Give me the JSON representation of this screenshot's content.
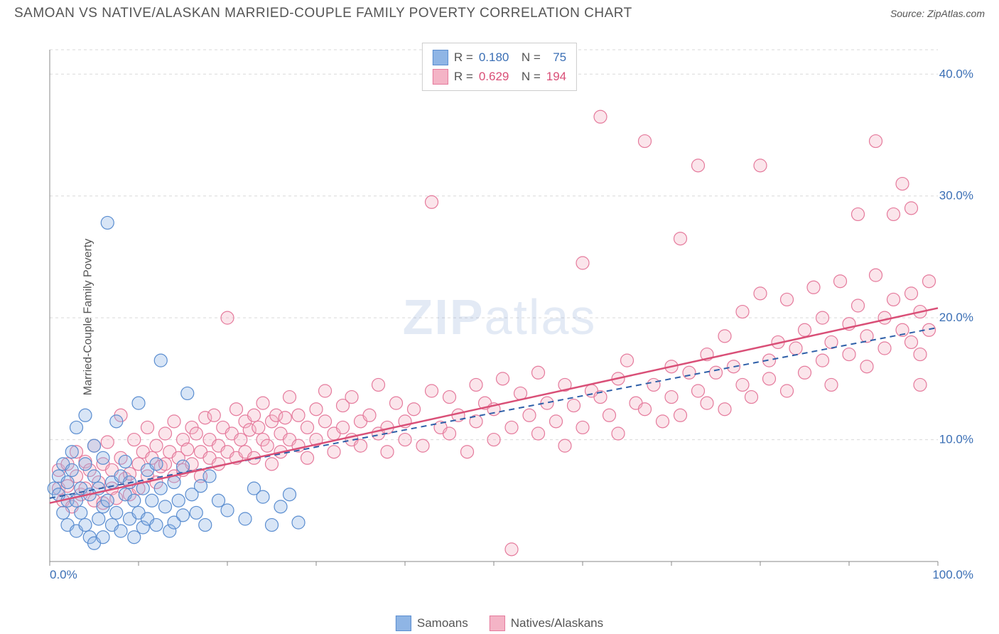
{
  "title": "SAMOAN VS NATIVE/ALASKAN MARRIED-COUPLE FAMILY POVERTY CORRELATION CHART",
  "source_label": "Source: ZipAtlas.com",
  "y_axis_label": "Married-Couple Family Poverty",
  "watermark": {
    "bold": "ZIP",
    "light": "atlas"
  },
  "chart": {
    "type": "scatter",
    "background_color": "#ffffff",
    "grid_color": "#d9d9d9",
    "grid_dash": "4,4",
    "axis_color": "#888888",
    "tick_label_color": "#3b6fb5",
    "tick_label_fontsize": 17,
    "xlim": [
      0,
      100
    ],
    "ylim": [
      0,
      42
    ],
    "x_ticks": [
      0,
      10,
      20,
      30,
      40,
      50,
      60,
      70,
      80,
      90,
      100
    ],
    "x_tick_labels": {
      "0": "0.0%",
      "100": "100.0%"
    },
    "y_ticks": [
      10,
      20,
      30,
      40
    ],
    "y_tick_labels": [
      "10.0%",
      "20.0%",
      "30.0%",
      "40.0%"
    ],
    "marker_radius": 9,
    "marker_fill_opacity": 0.35,
    "marker_stroke_width": 1.2,
    "series": [
      {
        "name": "Samoans",
        "color_fill": "#8fb5e5",
        "color_stroke": "#5a8dd0",
        "line_color": "#2e5fa8",
        "line_style": "dashed",
        "line_width": 2,
        "R": "0.180",
        "N": "75",
        "trend": {
          "x1": 0,
          "y1": 5.2,
          "x2": 100,
          "y2": 19.2
        },
        "points": [
          [
            0.5,
            6
          ],
          [
            1,
            5.5
          ],
          [
            1,
            7
          ],
          [
            1.5,
            4
          ],
          [
            1.5,
            8
          ],
          [
            2,
            5
          ],
          [
            2,
            6.5
          ],
          [
            2,
            3
          ],
          [
            2.5,
            7.5
          ],
          [
            2.5,
            9
          ],
          [
            3,
            5
          ],
          [
            3,
            2.5
          ],
          [
            3,
            11
          ],
          [
            3.5,
            6
          ],
          [
            3.5,
            4
          ],
          [
            4,
            8
          ],
          [
            4,
            3
          ],
          [
            4,
            12
          ],
          [
            4.5,
            5.5
          ],
          [
            4.5,
            2
          ],
          [
            5,
            7
          ],
          [
            5,
            1.5
          ],
          [
            5,
            9.5
          ],
          [
            5.5,
            6
          ],
          [
            5.5,
            3.5
          ],
          [
            6,
            4.5
          ],
          [
            6,
            8.5
          ],
          [
            6,
            2
          ],
          [
            6.5,
            27.8
          ],
          [
            6.5,
            5
          ],
          [
            7,
            6.5
          ],
          [
            7,
            3
          ],
          [
            7.5,
            11.5
          ],
          [
            7.5,
            4
          ],
          [
            8,
            7
          ],
          [
            8,
            2.5
          ],
          [
            8.5,
            5.5
          ],
          [
            8.5,
            8.2
          ],
          [
            9,
            3.5
          ],
          [
            9,
            6.5
          ],
          [
            9.5,
            2
          ],
          [
            9.5,
            5
          ],
          [
            10,
            13
          ],
          [
            10,
            4
          ],
          [
            10.5,
            6
          ],
          [
            10.5,
            2.8
          ],
          [
            11,
            3.5
          ],
          [
            11,
            7.5
          ],
          [
            11.5,
            5
          ],
          [
            12,
            8
          ],
          [
            12,
            3
          ],
          [
            12.5,
            6
          ],
          [
            12.5,
            16.5
          ],
          [
            13,
            4.5
          ],
          [
            13.5,
            2.5
          ],
          [
            14,
            6.5
          ],
          [
            14,
            3.2
          ],
          [
            14.5,
            5
          ],
          [
            15,
            7.8
          ],
          [
            15,
            3.8
          ],
          [
            15.5,
            13.8
          ],
          [
            16,
            5.5
          ],
          [
            16.5,
            4
          ],
          [
            17,
            6.2
          ],
          [
            17.5,
            3
          ],
          [
            18,
            7
          ],
          [
            19,
            5
          ],
          [
            20,
            4.2
          ],
          [
            22,
            3.5
          ],
          [
            23,
            6
          ],
          [
            24,
            5.3
          ],
          [
            25,
            3
          ],
          [
            26,
            4.5
          ],
          [
            27,
            5.5
          ],
          [
            28,
            3.2
          ]
        ]
      },
      {
        "name": "Natives/Alaskans",
        "color_fill": "#f4b4c6",
        "color_stroke": "#e57a9c",
        "line_color": "#d94f77",
        "line_style": "solid",
        "line_width": 2.5,
        "R": "0.629",
        "N": "194",
        "trend": {
          "x1": 0,
          "y1": 4.8,
          "x2": 100,
          "y2": 20.8
        },
        "points": [
          [
            1,
            6
          ],
          [
            1,
            7.5
          ],
          [
            1.5,
            5
          ],
          [
            2,
            8
          ],
          [
            2,
            6.2
          ],
          [
            2.5,
            4.5
          ],
          [
            3,
            7
          ],
          [
            3,
            9
          ],
          [
            3.5,
            5.5
          ],
          [
            4,
            8.2
          ],
          [
            4,
            6
          ],
          [
            4.5,
            7.5
          ],
          [
            5,
            5
          ],
          [
            5,
            9.5
          ],
          [
            5.5,
            6.5
          ],
          [
            6,
            8
          ],
          [
            6,
            4.8
          ],
          [
            6.5,
            9.8
          ],
          [
            7,
            6
          ],
          [
            7,
            7.5
          ],
          [
            7.5,
            5.2
          ],
          [
            8,
            8.5
          ],
          [
            8,
            12
          ],
          [
            8.5,
            6.8
          ],
          [
            9,
            7.2
          ],
          [
            9,
            5.5
          ],
          [
            9.5,
            10
          ],
          [
            10,
            8
          ],
          [
            10,
            6
          ],
          [
            10.5,
            9
          ],
          [
            11,
            11
          ],
          [
            11,
            7
          ],
          [
            11.5,
            8.5
          ],
          [
            12,
            6.5
          ],
          [
            12,
            9.5
          ],
          [
            12.5,
            7.8
          ],
          [
            13,
            10.5
          ],
          [
            13,
            8
          ],
          [
            13.5,
            9
          ],
          [
            14,
            7
          ],
          [
            14,
            11.5
          ],
          [
            14.5,
            8.5
          ],
          [
            15,
            10
          ],
          [
            15,
            7.5
          ],
          [
            15.5,
            9.2
          ],
          [
            16,
            11
          ],
          [
            16,
            8
          ],
          [
            16.5,
            10.5
          ],
          [
            17,
            9
          ],
          [
            17,
            7
          ],
          [
            17.5,
            11.8
          ],
          [
            18,
            8.5
          ],
          [
            18,
            10
          ],
          [
            18.5,
            12
          ],
          [
            19,
            9.5
          ],
          [
            19,
            8
          ],
          [
            19.5,
            11
          ],
          [
            20,
            20
          ],
          [
            20,
            9
          ],
          [
            20.5,
            10.5
          ],
          [
            21,
            8.5
          ],
          [
            21,
            12.5
          ],
          [
            21.5,
            10
          ],
          [
            22,
            11.5
          ],
          [
            22,
            9
          ],
          [
            22.5,
            10.8
          ],
          [
            23,
            12
          ],
          [
            23,
            8.5
          ],
          [
            23.5,
            11
          ],
          [
            24,
            10
          ],
          [
            24,
            13
          ],
          [
            24.5,
            9.5
          ],
          [
            25,
            11.5
          ],
          [
            25,
            8
          ],
          [
            25.5,
            12
          ],
          [
            26,
            10.5
          ],
          [
            26,
            9
          ],
          [
            26.5,
            11.8
          ],
          [
            27,
            13.5
          ],
          [
            27,
            10
          ],
          [
            28,
            12
          ],
          [
            28,
            9.5
          ],
          [
            29,
            11
          ],
          [
            29,
            8.5
          ],
          [
            30,
            12.5
          ],
          [
            30,
            10
          ],
          [
            31,
            11.5
          ],
          [
            31,
            14
          ],
          [
            32,
            10.5
          ],
          [
            32,
            9
          ],
          [
            33,
            12.8
          ],
          [
            33,
            11
          ],
          [
            34,
            10
          ],
          [
            34,
            13.5
          ],
          [
            35,
            11.5
          ],
          [
            35,
            9.5
          ],
          [
            36,
            12
          ],
          [
            37,
            10.5
          ],
          [
            37,
            14.5
          ],
          [
            38,
            11
          ],
          [
            38,
            9
          ],
          [
            39,
            13
          ],
          [
            40,
            11.5
          ],
          [
            40,
            10
          ],
          [
            41,
            12.5
          ],
          [
            42,
            9.5
          ],
          [
            43,
            14
          ],
          [
            43,
            29.5
          ],
          [
            44,
            11
          ],
          [
            45,
            13.5
          ],
          [
            45,
            10.5
          ],
          [
            46,
            12
          ],
          [
            47,
            9
          ],
          [
            48,
            14.5
          ],
          [
            48,
            11.5
          ],
          [
            49,
            13
          ],
          [
            50,
            10
          ],
          [
            50,
            12.5
          ],
          [
            51,
            15
          ],
          [
            52,
            11
          ],
          [
            52,
            1
          ],
          [
            53,
            13.8
          ],
          [
            54,
            12
          ],
          [
            55,
            10.5
          ],
          [
            55,
            15.5
          ],
          [
            56,
            13
          ],
          [
            57,
            11.5
          ],
          [
            58,
            14.5
          ],
          [
            58,
            9.5
          ],
          [
            59,
            12.8
          ],
          [
            60,
            24.5
          ],
          [
            60,
            11
          ],
          [
            61,
            14
          ],
          [
            62,
            36.5
          ],
          [
            62,
            13.5
          ],
          [
            63,
            12
          ],
          [
            64,
            15
          ],
          [
            64,
            10.5
          ],
          [
            65,
            16.5
          ],
          [
            66,
            13
          ],
          [
            67,
            34.5
          ],
          [
            67,
            12.5
          ],
          [
            68,
            14.5
          ],
          [
            69,
            11.5
          ],
          [
            70,
            16
          ],
          [
            70,
            13.5
          ],
          [
            71,
            26.5
          ],
          [
            71,
            12
          ],
          [
            72,
            15.5
          ],
          [
            73,
            14
          ],
          [
            73,
            32.5
          ],
          [
            74,
            17
          ],
          [
            74,
            13
          ],
          [
            75,
            15.5
          ],
          [
            76,
            18.5
          ],
          [
            76,
            12.5
          ],
          [
            77,
            16
          ],
          [
            78,
            20.5
          ],
          [
            78,
            14.5
          ],
          [
            79,
            13.5
          ],
          [
            80,
            22
          ],
          [
            80,
            32.5
          ],
          [
            81,
            16.5
          ],
          [
            81,
            15
          ],
          [
            82,
            18
          ],
          [
            83,
            14
          ],
          [
            83,
            21.5
          ],
          [
            84,
            17.5
          ],
          [
            85,
            19
          ],
          [
            85,
            15.5
          ],
          [
            86,
            22.5
          ],
          [
            87,
            16.5
          ],
          [
            87,
            20
          ],
          [
            88,
            18
          ],
          [
            88,
            14.5
          ],
          [
            89,
            23
          ],
          [
            90,
            19.5
          ],
          [
            90,
            17
          ],
          [
            91,
            28.5
          ],
          [
            91,
            21
          ],
          [
            92,
            18.5
          ],
          [
            92,
            16
          ],
          [
            93,
            23.5
          ],
          [
            93,
            34.5
          ],
          [
            94,
            20
          ],
          [
            94,
            17.5
          ],
          [
            95,
            21.5
          ],
          [
            95,
            28.5
          ],
          [
            96,
            19
          ],
          [
            96,
            31
          ],
          [
            97,
            22
          ],
          [
            97,
            18
          ],
          [
            97,
            29
          ],
          [
            98,
            20.5
          ],
          [
            98,
            14.5
          ],
          [
            98,
            17
          ],
          [
            99,
            23
          ],
          [
            99,
            19
          ]
        ]
      }
    ]
  },
  "legend_bottom": [
    {
      "label": "Samoans",
      "fill": "#8fb5e5",
      "stroke": "#5a8dd0"
    },
    {
      "label": "Natives/Alaskans",
      "fill": "#f4b4c6",
      "stroke": "#e57a9c"
    }
  ]
}
